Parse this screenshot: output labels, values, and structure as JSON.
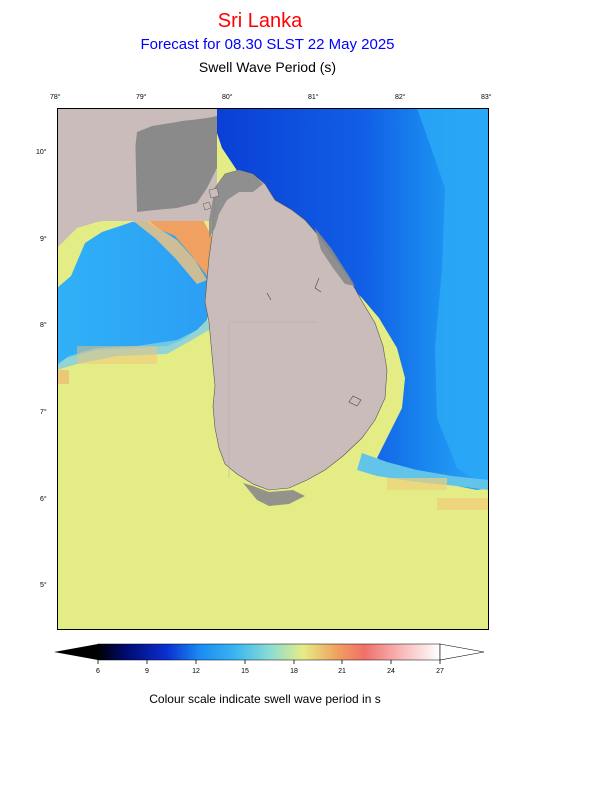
{
  "header": {
    "title": "Sri Lanka",
    "forecast": "Forecast for  08.30 SLST 22 May 2025",
    "parameter": "Swell Wave Period (s)"
  },
  "map": {
    "lon_ticks": [
      "78°",
      "79°",
      "80°",
      "81°",
      "82°",
      "83°"
    ],
    "lat_ticks": [
      "10°",
      "9°",
      "8°",
      "7°",
      "6°",
      "5°"
    ],
    "lon_range": [
      78,
      83
    ],
    "lat_range": [
      4.5,
      10.5
    ],
    "colors": {
      "land": "#cbbcbc",
      "dry_coast": "#8a8a8a",
      "sea_south": "#e4ec86",
      "sea_east_deep": "#0a40d8",
      "sea_mid_blue": "#2ca8f6",
      "sea_orange": "#f0a060"
    }
  },
  "colorbar": {
    "ticks": [
      "6",
      "9",
      "12",
      "15",
      "18",
      "21",
      "24",
      "27"
    ],
    "label": "Colour scale indicate swell wave period in s"
  }
}
